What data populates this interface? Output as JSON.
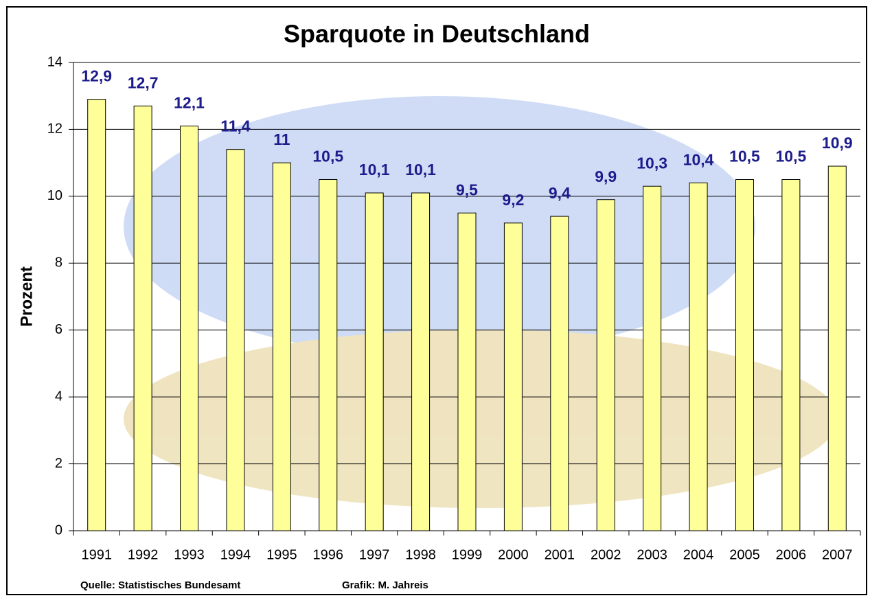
{
  "chart_data": {
    "type": "bar",
    "title": "Sparquote in Deutschland",
    "y_label": "Prozent",
    "source": "Quelle: Statistisches Bundesamt",
    "credit": "Grafik: M. Jahreis",
    "categories": [
      "1991",
      "1992",
      "1993",
      "1994",
      "1995",
      "1996",
      "1997",
      "1998",
      "1999",
      "2000",
      "2001",
      "2002",
      "2003",
      "2004",
      "2005",
      "2006",
      "2007"
    ],
    "values": [
      12.9,
      12.7,
      12.1,
      11.4,
      11,
      10.5,
      10.1,
      10.1,
      9.5,
      9.2,
      9.4,
      9.9,
      10.3,
      10.4,
      10.5,
      10.5,
      10.9
    ],
    "value_labels": [
      "12,9",
      "12,7",
      "12,1",
      "11,4",
      "11",
      "10,5",
      "10,1",
      "10,1",
      "9,5",
      "9,2",
      "9,4",
      "9,9",
      "10,3",
      "10,4",
      "10,5",
      "10,5",
      "10,9"
    ],
    "color": "#ffff99",
    "label_color": "#1c1c8c",
    "ylim": [
      0,
      14
    ],
    "yticks": [
      0,
      2,
      4,
      6,
      8,
      10,
      12,
      14
    ],
    "grid": true
  }
}
